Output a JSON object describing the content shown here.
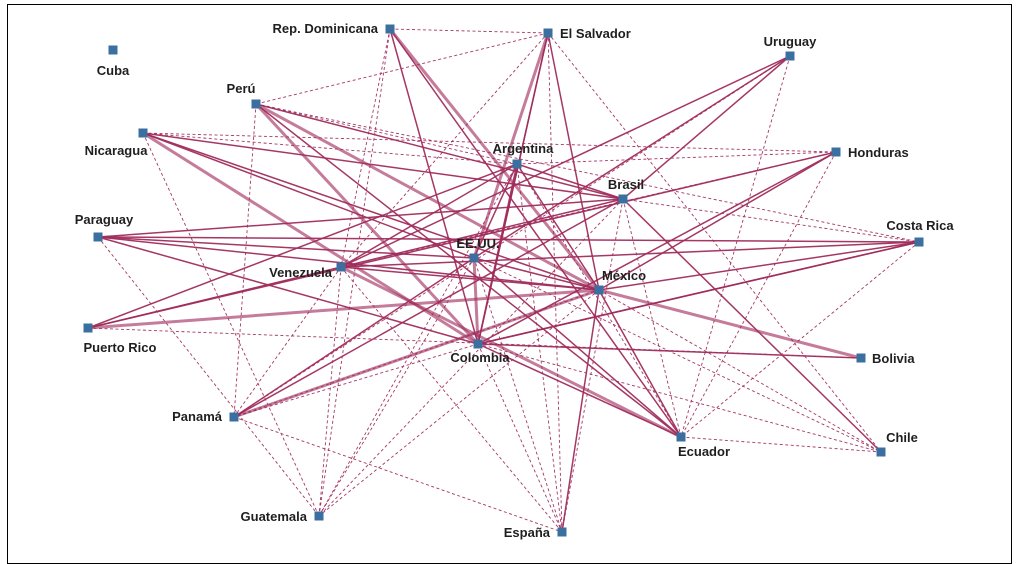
{
  "colors": {
    "node": "#3a6f9f",
    "edge": "#a02c5c",
    "label": "#1f1f1f",
    "border": "#000000",
    "background": "#ffffff"
  },
  "nodes": [
    {
      "id": "cuba",
      "label": "Cuba"
    },
    {
      "id": "rep-dominicana",
      "label": "Rep. Dominicana"
    },
    {
      "id": "el-salvador",
      "label": "El Salvador"
    },
    {
      "id": "uruguay",
      "label": "Uruguay"
    },
    {
      "id": "peru",
      "label": "Perú"
    },
    {
      "id": "nicaragua",
      "label": "Nicaragua"
    },
    {
      "id": "argentina",
      "label": "Argentina"
    },
    {
      "id": "honduras",
      "label": "Honduras"
    },
    {
      "id": "brasil",
      "label": "Brasil"
    },
    {
      "id": "paraguay",
      "label": "Paraguay"
    },
    {
      "id": "costa-rica",
      "label": "Costa Rica"
    },
    {
      "id": "eeuu",
      "label": "EE.UU."
    },
    {
      "id": "venezuela",
      "label": "Venezuela"
    },
    {
      "id": "mexico",
      "label": "México"
    },
    {
      "id": "puerto-rico",
      "label": "Puerto Rico"
    },
    {
      "id": "colombia",
      "label": "Colombia"
    },
    {
      "id": "bolivia",
      "label": "Bolivia"
    },
    {
      "id": "panama",
      "label": "Panamá"
    },
    {
      "id": "ecuador",
      "label": "Ecuador"
    },
    {
      "id": "chile",
      "label": "Chile"
    },
    {
      "id": "guatemala",
      "label": "Guatemala"
    },
    {
      "id": "espana",
      "label": "España"
    }
  ],
  "edges": [
    {
      "source": "peru",
      "target": "mexico",
      "strength": 3
    },
    {
      "source": "peru",
      "target": "colombia",
      "strength": 3
    },
    {
      "source": "nicaragua",
      "target": "colombia",
      "strength": 3
    },
    {
      "source": "nicaragua",
      "target": "mexico",
      "strength": 2
    },
    {
      "source": "paraguay",
      "target": "mexico",
      "strength": 2
    },
    {
      "source": "puerto-rico",
      "target": "mexico",
      "strength": 3
    },
    {
      "source": "panama",
      "target": "mexico",
      "strength": 3
    },
    {
      "source": "rep-dominicana",
      "target": "mexico",
      "strength": 3
    },
    {
      "source": "rep-dominicana",
      "target": "colombia",
      "strength": 2
    },
    {
      "source": "el-salvador",
      "target": "eeuu",
      "strength": 3
    },
    {
      "source": "el-salvador",
      "target": "mexico",
      "strength": 2
    },
    {
      "source": "eeuu",
      "target": "colombia",
      "strength": 3
    },
    {
      "source": "venezuela",
      "target": "ecuador",
      "strength": 3
    },
    {
      "source": "mexico",
      "target": "bolivia",
      "strength": 3
    },
    {
      "source": "peru",
      "target": "brasil",
      "strength": 2
    },
    {
      "source": "peru",
      "target": "ecuador",
      "strength": 2
    },
    {
      "source": "nicaragua",
      "target": "brasil",
      "strength": 2
    },
    {
      "source": "nicaragua",
      "target": "eeuu",
      "strength": 2
    },
    {
      "source": "paraguay",
      "target": "brasil",
      "strength": 2
    },
    {
      "source": "paraguay",
      "target": "eeuu",
      "strength": 2
    },
    {
      "source": "paraguay",
      "target": "colombia",
      "strength": 2
    },
    {
      "source": "paraguay",
      "target": "costa-rica",
      "strength": 2
    },
    {
      "source": "puerto-rico",
      "target": "argentina",
      "strength": 2
    },
    {
      "source": "puerto-rico",
      "target": "brasil",
      "strength": 2
    },
    {
      "source": "puerto-rico",
      "target": "honduras",
      "strength": 2
    },
    {
      "source": "panama",
      "target": "eeuu",
      "strength": 2
    },
    {
      "source": "panama",
      "target": "brasil",
      "strength": 2
    },
    {
      "source": "venezuela",
      "target": "argentina",
      "strength": 2
    },
    {
      "source": "venezuela",
      "target": "uruguay",
      "strength": 2
    },
    {
      "source": "venezuela",
      "target": "costa-rica",
      "strength": 2
    },
    {
      "source": "venezuela",
      "target": "mexico",
      "strength": 2
    },
    {
      "source": "eeuu",
      "target": "mexico",
      "strength": 2
    },
    {
      "source": "eeuu",
      "target": "ecuador",
      "strength": 2
    },
    {
      "source": "eeuu",
      "target": "argentina",
      "strength": 2
    },
    {
      "source": "eeuu",
      "target": "uruguay",
      "strength": 2
    },
    {
      "source": "colombia",
      "target": "argentina",
      "strength": 2
    },
    {
      "source": "colombia",
      "target": "el-salvador",
      "strength": 2
    },
    {
      "source": "colombia",
      "target": "bolivia",
      "strength": 2
    },
    {
      "source": "colombia",
      "target": "ecuador",
      "strength": 2
    },
    {
      "source": "colombia",
      "target": "costa-rica",
      "strength": 2
    },
    {
      "source": "colombia",
      "target": "honduras",
      "strength": 2
    },
    {
      "source": "mexico",
      "target": "argentina",
      "strength": 2
    },
    {
      "source": "mexico",
      "target": "espana",
      "strength": 2
    },
    {
      "source": "mexico",
      "target": "ecuador",
      "strength": 2
    },
    {
      "source": "mexico",
      "target": "costa-rica",
      "strength": 2
    },
    {
      "source": "mexico",
      "target": "honduras",
      "strength": 2
    },
    {
      "source": "argentina",
      "target": "brasil",
      "strength": 2
    },
    {
      "source": "brasil",
      "target": "chile",
      "strength": 2
    },
    {
      "source": "brasil",
      "target": "uruguay",
      "strength": 2
    },
    {
      "source": "rep-dominicana",
      "target": "ecuador",
      "strength": 2
    },
    {
      "source": "el-salvador",
      "target": "colombia",
      "strength": 2
    },
    {
      "source": "costa-rica",
      "target": "colombia",
      "strength": 2
    },
    {
      "source": "peru",
      "target": "argentina",
      "strength": 1
    },
    {
      "source": "peru",
      "target": "panama",
      "strength": 1
    },
    {
      "source": "peru",
      "target": "costa-rica",
      "strength": 1
    },
    {
      "source": "nicaragua",
      "target": "argentina",
      "strength": 1
    },
    {
      "source": "nicaragua",
      "target": "honduras",
      "strength": 1
    },
    {
      "source": "nicaragua",
      "target": "guatemala",
      "strength": 1
    },
    {
      "source": "paraguay",
      "target": "guatemala",
      "strength": 1
    },
    {
      "source": "rep-dominicana",
      "target": "guatemala",
      "strength": 1
    },
    {
      "source": "rep-dominicana",
      "target": "venezuela",
      "strength": 1
    },
    {
      "source": "rep-dominicana",
      "target": "el-salvador",
      "strength": 1
    },
    {
      "source": "el-salvador",
      "target": "peru",
      "strength": 1
    },
    {
      "source": "el-salvador",
      "target": "venezuela",
      "strength": 1
    },
    {
      "source": "el-salvador",
      "target": "espana",
      "strength": 1
    },
    {
      "source": "el-salvador",
      "target": "chile",
      "strength": 1
    },
    {
      "source": "uruguay",
      "target": "ecuador",
      "strength": 1
    },
    {
      "source": "uruguay",
      "target": "panama",
      "strength": 1
    },
    {
      "source": "argentina",
      "target": "espana",
      "strength": 1
    },
    {
      "source": "argentina",
      "target": "honduras",
      "strength": 1
    },
    {
      "source": "argentina",
      "target": "ecuador",
      "strength": 1
    },
    {
      "source": "argentina",
      "target": "guatemala",
      "strength": 1
    },
    {
      "source": "brasil",
      "target": "costa-rica",
      "strength": 1
    },
    {
      "source": "brasil",
      "target": "guatemala",
      "strength": 1
    },
    {
      "source": "brasil",
      "target": "ecuador",
      "strength": 1
    },
    {
      "source": "brasil",
      "target": "espana",
      "strength": 1
    },
    {
      "source": "eeuu",
      "target": "espana",
      "strength": 1
    },
    {
      "source": "eeuu",
      "target": "guatemala",
      "strength": 1
    },
    {
      "source": "eeuu",
      "target": "chile",
      "strength": 1
    },
    {
      "source": "venezuela",
      "target": "guatemala",
      "strength": 1
    },
    {
      "source": "venezuela",
      "target": "espana",
      "strength": 1
    },
    {
      "source": "venezuela",
      "target": "panama",
      "strength": 1
    },
    {
      "source": "venezuela",
      "target": "puerto-rico",
      "strength": 1
    },
    {
      "source": "venezuela",
      "target": "honduras",
      "strength": 1
    },
    {
      "source": "mexico",
      "target": "guatemala",
      "strength": 1
    },
    {
      "source": "mexico",
      "target": "panama",
      "strength": 1
    },
    {
      "source": "mexico",
      "target": "chile",
      "strength": 1
    },
    {
      "source": "colombia",
      "target": "panama",
      "strength": 1
    },
    {
      "source": "colombia",
      "target": "espana",
      "strength": 1
    },
    {
      "source": "colombia",
      "target": "chile",
      "strength": 1
    },
    {
      "source": "ecuador",
      "target": "chile",
      "strength": 1
    },
    {
      "source": "honduras",
      "target": "ecuador",
      "strength": 1
    },
    {
      "source": "puerto-rico",
      "target": "bolivia",
      "strength": 1
    },
    {
      "source": "costa-rica",
      "target": "ecuador",
      "strength": 1
    },
    {
      "source": "panama",
      "target": "espana",
      "strength": 1
    }
  ]
}
